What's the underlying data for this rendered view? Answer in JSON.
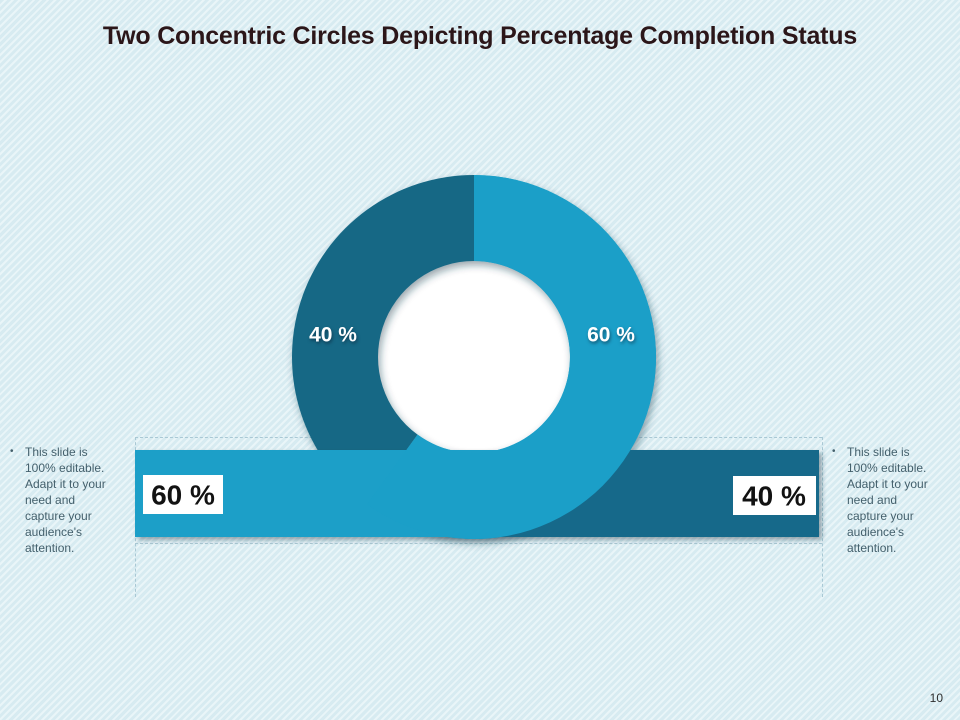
{
  "slide": {
    "title": "Two Concentric Circles Depicting Percentage Completion Status",
    "page_number": "10",
    "background_color": "#D9EDF2",
    "title_color": "#2B1619"
  },
  "chart_data": {
    "type": "pie",
    "subtype": "donut-with-linked-bar",
    "title": "Two Concentric Circles Depicting Percentage Completion Status",
    "labels": [
      "60 %",
      "40 %"
    ],
    "values": [
      60,
      40
    ],
    "colors": [
      "#1B9FC8",
      "#166885"
    ],
    "start_angle_deg": 0,
    "direction": "clockwise",
    "donut_hole_color": "#FFFFFF",
    "legend_position": "none",
    "linked_bar": {
      "type": "bar",
      "orientation": "horizontal",
      "segments": [
        {
          "label": "60 %",
          "value": 60,
          "color": "#1B9FC8"
        },
        {
          "label": "40 %",
          "value": 40,
          "color": "#17698A"
        }
      ],
      "label_box_color": "#FFFFFF",
      "label_text_color": "#121212"
    }
  },
  "side_notes": {
    "bullet": "•",
    "left_text": "This slide is\n100% editable.\nAdapt it to your\nneed and\ncapture your\naudience's\nattention.",
    "right_text": "This slide is\n100% editable.\nAdapt it to your\nneed and\ncapture your\naudience's\nattention.",
    "text_color": "#44606C"
  }
}
